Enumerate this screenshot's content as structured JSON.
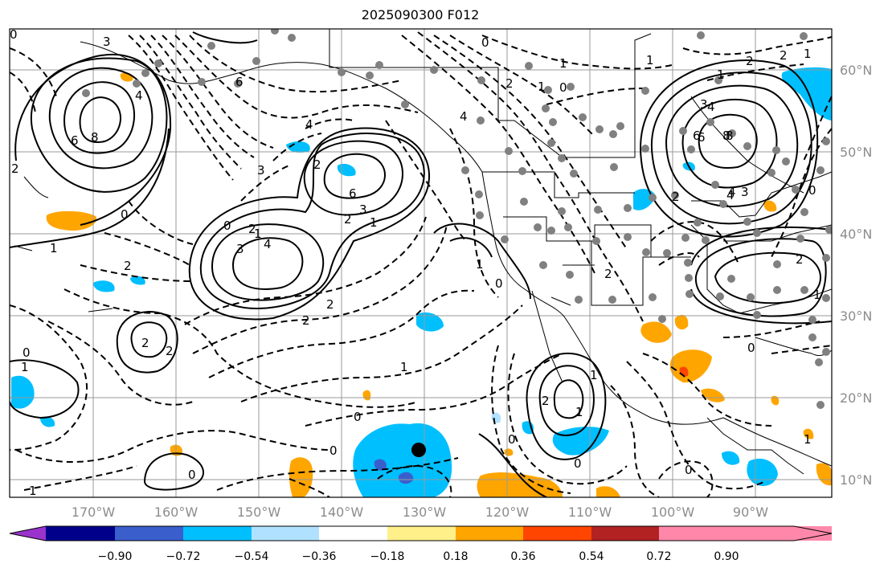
{
  "title": "2025090300 F012",
  "lat_labels": [
    "60°N",
    "50°N",
    "40°N",
    "30°N",
    "20°N",
    "10°N"
  ],
  "lon_labels": [
    "170°W",
    "160°W",
    "150°W",
    "140°W",
    "130°W",
    "120°W",
    "110°W",
    "100°W",
    "90°W"
  ],
  "colorbar": {
    "ticks": [
      "−0.90",
      "−0.72",
      "−0.54",
      "−0.36",
      "−0.18",
      "0.18",
      "0.36",
      "0.54",
      "0.72",
      "0.90"
    ],
    "colors": [
      "#9933cc",
      "#00008b",
      "#3a5fcd",
      "#00bfff",
      "#b0e2ff",
      "#ffffff",
      "#fff08a",
      "#ffa500",
      "#ff4500",
      "#b22222",
      "#ff88aa"
    ]
  },
  "contour_labels": [
    "3",
    "4",
    "8",
    "6",
    "2",
    "0",
    "1",
    "2",
    "6",
    "0",
    "2",
    "1",
    "0",
    "4",
    "3",
    "8",
    "6",
    "4",
    "4",
    "2",
    "3",
    "6",
    "3",
    "2",
    "2",
    "0",
    "1",
    "3",
    "4",
    "2",
    "2",
    "1",
    "1",
    "2",
    "0",
    "0",
    "2",
    "1",
    "1",
    "2",
    "0",
    "0",
    "2",
    "1",
    "1",
    "0",
    "3",
    "4",
    "2",
    "6",
    "8",
    "4",
    "2",
    "1",
    "0",
    "1",
    "0",
    "2",
    "1",
    "2",
    "1",
    "0",
    "0",
    "1",
    "1",
    "0",
    "1",
    "0"
  ],
  "colors": {
    "frame": "#000000",
    "grid": "#999999",
    "tick_text": "#8c8c8c",
    "station": "#808080"
  }
}
